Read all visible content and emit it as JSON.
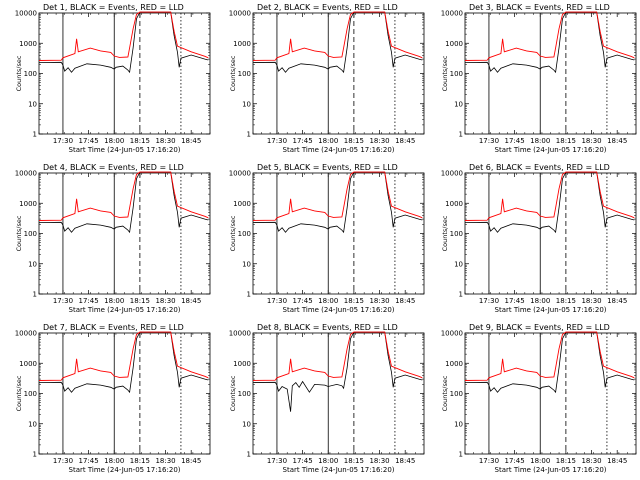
{
  "chart_data": [
    {
      "type": "line",
      "title": "Det 1, BLACK = Events, RED = LLD",
      "xlabel": "Start Time (24-Jun-05 17:16:20)",
      "ylabel": "Counts/sec",
      "yscale": "log",
      "ylim": [
        1,
        10000
      ],
      "xlim": [
        "17:16",
        "18:56"
      ],
      "xticks": [
        "17:30",
        "17:45",
        "18:00",
        "18:15",
        "18:30",
        "18:45"
      ],
      "yticks": [
        "1",
        "10",
        "100",
        "1000",
        "10000"
      ],
      "legend": [
        {
          "name": "BLACK = Events",
          "color": "#000000"
        },
        {
          "name": "RED = LLD",
          "color": "#ff0000"
        }
      ],
      "lines": [
        {
          "t": "17:30",
          "style": "solid"
        },
        {
          "t": "18:00",
          "style": "solid"
        },
        {
          "t": "18:15",
          "style": "dashed"
        },
        {
          "t": "18:39",
          "style": "dotted"
        }
      ]
    },
    {
      "type": "line",
      "title": "Det 2, BLACK = Events, RED = LLD",
      "xlabel": "Start Time (24-Jun-05 17:16:20)",
      "ylabel": "Counts/sec",
      "yscale": "log",
      "ylim": [
        1,
        10000
      ],
      "xlim": [
        "17:16",
        "18:56"
      ],
      "xticks": [
        "17:30",
        "17:45",
        "18:00",
        "18:15",
        "18:30",
        "18:45"
      ],
      "yticks": [
        "1",
        "10",
        "100",
        "1000",
        "10000"
      ],
      "legend": [
        {
          "name": "BLACK = Events",
          "color": "#000000"
        },
        {
          "name": "RED = LLD",
          "color": "#ff0000"
        }
      ],
      "lines": [
        {
          "t": "17:30",
          "style": "solid"
        },
        {
          "t": "18:00",
          "style": "solid"
        },
        {
          "t": "18:15",
          "style": "dashed"
        },
        {
          "t": "18:39",
          "style": "dotted"
        }
      ]
    },
    {
      "type": "line",
      "title": "Det 3, BLACK = Events, RED = LLD",
      "xlabel": "Start Time (24-Jun-05 17:16:20)",
      "ylabel": "Counts/sec",
      "yscale": "log",
      "ylim": [
        1,
        10000
      ],
      "xlim": [
        "17:16",
        "18:56"
      ],
      "xticks": [
        "17:30",
        "17:45",
        "18:00",
        "18:15",
        "18:30",
        "18:45"
      ],
      "yticks": [
        "1",
        "10",
        "100",
        "1000",
        "10000"
      ],
      "legend": [
        {
          "name": "BLACK = Events",
          "color": "#000000"
        },
        {
          "name": "RED = LLD",
          "color": "#ff0000"
        }
      ],
      "lines": [
        {
          "t": "17:30",
          "style": "solid"
        },
        {
          "t": "18:00",
          "style": "solid"
        },
        {
          "t": "18:15",
          "style": "dashed"
        },
        {
          "t": "18:39",
          "style": "dotted"
        }
      ]
    },
    {
      "type": "line",
      "title": "Det 4, BLACK = Events, RED = LLD",
      "xlabel": "Start Time (24-Jun-05 17:16:20)",
      "ylabel": "Counts/sec",
      "yscale": "log",
      "ylim": [
        1,
        10000
      ],
      "xlim": [
        "17:16",
        "18:56"
      ],
      "xticks": [
        "17:30",
        "17:45",
        "18:00",
        "18:15",
        "18:30",
        "18:45"
      ],
      "yticks": [
        "1",
        "10",
        "100",
        "1000",
        "10000"
      ],
      "legend": [
        {
          "name": "BLACK = Events",
          "color": "#000000"
        },
        {
          "name": "RED = LLD",
          "color": "#ff0000"
        }
      ],
      "lines": [
        {
          "t": "17:30",
          "style": "solid"
        },
        {
          "t": "18:00",
          "style": "solid"
        },
        {
          "t": "18:15",
          "style": "dashed"
        },
        {
          "t": "18:39",
          "style": "dotted"
        }
      ]
    },
    {
      "type": "line",
      "title": "Det 5, BLACK = Events, RED = LLD",
      "xlabel": "Start Time (24-Jun-05 17:16:20)",
      "ylabel": "Counts/sec",
      "yscale": "log",
      "ylim": [
        1,
        10000
      ],
      "xlim": [
        "17:16",
        "18:56"
      ],
      "xticks": [
        "17:30",
        "17:45",
        "18:00",
        "18:15",
        "18:30",
        "18:45"
      ],
      "yticks": [
        "1",
        "10",
        "100",
        "1000",
        "10000"
      ],
      "legend": [
        {
          "name": "BLACK = Events",
          "color": "#000000"
        },
        {
          "name": "RED = LLD",
          "color": "#ff0000"
        }
      ],
      "lines": [
        {
          "t": "17:30",
          "style": "solid"
        },
        {
          "t": "18:00",
          "style": "solid"
        },
        {
          "t": "18:15",
          "style": "dashed"
        },
        {
          "t": "18:39",
          "style": "dotted"
        }
      ]
    },
    {
      "type": "line",
      "title": "Det 6, BLACK = Events, RED = LLD",
      "xlabel": "Start Time (24-Jun-05 17:16:20)",
      "ylabel": "Counts/sec",
      "yscale": "log",
      "ylim": [
        1,
        10000
      ],
      "xlim": [
        "17:16",
        "18:56"
      ],
      "xticks": [
        "17:30",
        "17:45",
        "18:00",
        "18:15",
        "18:30",
        "18:45"
      ],
      "yticks": [
        "1",
        "10",
        "100",
        "1000",
        "10000"
      ],
      "legend": [
        {
          "name": "BLACK = Events",
          "color": "#000000"
        },
        {
          "name": "RED = LLD",
          "color": "#ff0000"
        }
      ],
      "lines": [
        {
          "t": "17:30",
          "style": "solid"
        },
        {
          "t": "18:00",
          "style": "solid"
        },
        {
          "t": "18:15",
          "style": "dashed"
        },
        {
          "t": "18:39",
          "style": "dotted"
        }
      ]
    },
    {
      "type": "line",
      "title": "Det 7, BLACK = Events, RED = LLD",
      "xlabel": "Start Time (24-Jun-05 17:16:20)",
      "ylabel": "Counts/sec",
      "yscale": "log",
      "ylim": [
        1,
        10000
      ],
      "xlim": [
        "17:16",
        "18:56"
      ],
      "xticks": [
        "17:30",
        "17:45",
        "18:00",
        "18:15",
        "18:30",
        "18:45"
      ],
      "yticks": [
        "1",
        "10",
        "100",
        "1000",
        "10000"
      ],
      "legend": [
        {
          "name": "BLACK = Events",
          "color": "#000000"
        },
        {
          "name": "RED = LLD",
          "color": "#ff0000"
        }
      ],
      "lines": [
        {
          "t": "17:30",
          "style": "solid"
        },
        {
          "t": "18:00",
          "style": "solid"
        },
        {
          "t": "18:15",
          "style": "dashed"
        },
        {
          "t": "18:39",
          "style": "dotted"
        }
      ]
    },
    {
      "type": "line",
      "title": "Det 8, BLACK = Events, RED = LLD",
      "xlabel": "Start Time (24-Jun-05 17:16:20)",
      "ylabel": "Counts/sec",
      "yscale": "log",
      "ylim": [
        1,
        10000
      ],
      "xlim": [
        "17:16",
        "18:56"
      ],
      "xticks": [
        "17:30",
        "17:45",
        "18:00",
        "18:15",
        "18:30",
        "18:45"
      ],
      "yticks": [
        "1",
        "10",
        "100",
        "1000",
        "10000"
      ],
      "legend": [
        {
          "name": "BLACK = Events",
          "color": "#000000"
        },
        {
          "name": "RED = LLD",
          "color": "#ff0000"
        }
      ],
      "lines": [
        {
          "t": "17:30",
          "style": "solid"
        },
        {
          "t": "18:00",
          "style": "solid"
        },
        {
          "t": "18:15",
          "style": "dashed"
        },
        {
          "t": "18:39",
          "style": "dotted"
        }
      ]
    },
    {
      "type": "line",
      "title": "Det 9, BLACK = Events, RED = LLD",
      "xlabel": "Start Time (24-Jun-05 17:16:20)",
      "ylabel": "Counts/sec",
      "yscale": "log",
      "ylim": [
        1,
        10000
      ],
      "xlim": [
        "17:16",
        "18:56"
      ],
      "xticks": [
        "17:30",
        "17:45",
        "18:00",
        "18:15",
        "18:30",
        "18:45"
      ],
      "yticks": [
        "1",
        "10",
        "100",
        "1000",
        "10000"
      ],
      "legend": [
        {
          "name": "BLACK = Events",
          "color": "#000000"
        },
        {
          "name": "RED = LLD",
          "color": "#ff0000"
        }
      ],
      "lines": [
        {
          "t": "17:30",
          "style": "solid"
        },
        {
          "t": "18:00",
          "style": "solid"
        },
        {
          "t": "18:15",
          "style": "dashed"
        },
        {
          "t": "18:39",
          "style": "dotted"
        }
      ]
    }
  ],
  "series_profile": {
    "lld": [
      [
        "17:16",
        270
      ],
      [
        "17:29",
        275
      ],
      [
        "17:30",
        330
      ],
      [
        "17:37",
        460
      ],
      [
        "17:38",
        1400
      ],
      [
        "17:39",
        520
      ],
      [
        "17:46",
        690
      ],
      [
        "17:52",
        560
      ],
      [
        "17:58",
        500
      ],
      [
        "18:00",
        380
      ],
      [
        "18:03",
        340
      ],
      [
        "18:08",
        350
      ],
      [
        "18:09",
        700
      ],
      [
        "18:11",
        3000
      ],
      [
        "18:13",
        9000
      ],
      [
        "18:15",
        12000
      ],
      [
        "18:33",
        12000
      ],
      [
        "18:35",
        2500
      ],
      [
        "18:37",
        800
      ],
      [
        "18:45",
        520
      ],
      [
        "18:53",
        370
      ],
      [
        "18:55",
        330
      ]
    ],
    "events": [
      [
        "17:16",
        230
      ],
      [
        "17:29",
        235
      ],
      [
        "17:30",
        190
      ],
      [
        "17:31",
        120
      ],
      [
        "17:33",
        155
      ],
      [
        "17:35",
        110
      ],
      [
        "17:37",
        150
      ],
      [
        "17:44",
        210
      ],
      [
        "17:52",
        190
      ],
      [
        "17:58",
        160
      ],
      [
        "18:00",
        140
      ],
      [
        "18:01",
        160
      ],
      [
        "18:05",
        175
      ],
      [
        "18:08",
        130
      ],
      [
        "18:09",
        110
      ],
      [
        "18:11",
        700
      ],
      [
        "18:13",
        6500
      ],
      [
        "18:15",
        12000
      ],
      [
        "18:33",
        12000
      ],
      [
        "18:35",
        1800
      ],
      [
        "18:37",
        500
      ],
      [
        "18:38",
        160
      ],
      [
        "18:39",
        320
      ],
      [
        "18:45",
        410
      ],
      [
        "18:53",
        300
      ],
      [
        "18:55",
        280
      ]
    ],
    "events_det8": [
      [
        "17:16",
        230
      ],
      [
        "17:29",
        235
      ],
      [
        "17:30",
        190
      ],
      [
        "17:31",
        120
      ],
      [
        "17:33",
        170
      ],
      [
        "17:36",
        140
      ],
      [
        "17:38",
        25
      ],
      [
        "17:39",
        180
      ],
      [
        "17:41",
        230
      ],
      [
        "17:43",
        160
      ],
      [
        "17:45",
        250
      ],
      [
        "17:49",
        110
      ],
      [
        "17:52",
        200
      ],
      [
        "17:58",
        190
      ],
      [
        "18:00",
        170
      ],
      [
        "18:05",
        200
      ],
      [
        "18:08",
        180
      ],
      [
        "18:09",
        150
      ],
      [
        "18:11",
        700
      ],
      [
        "18:13",
        6500
      ],
      [
        "18:15",
        12000
      ],
      [
        "18:33",
        12000
      ],
      [
        "18:35",
        1800
      ],
      [
        "18:37",
        500
      ],
      [
        "18:38",
        160
      ],
      [
        "18:39",
        320
      ],
      [
        "18:45",
        410
      ],
      [
        "18:53",
        300
      ],
      [
        "18:55",
        280
      ]
    ]
  }
}
